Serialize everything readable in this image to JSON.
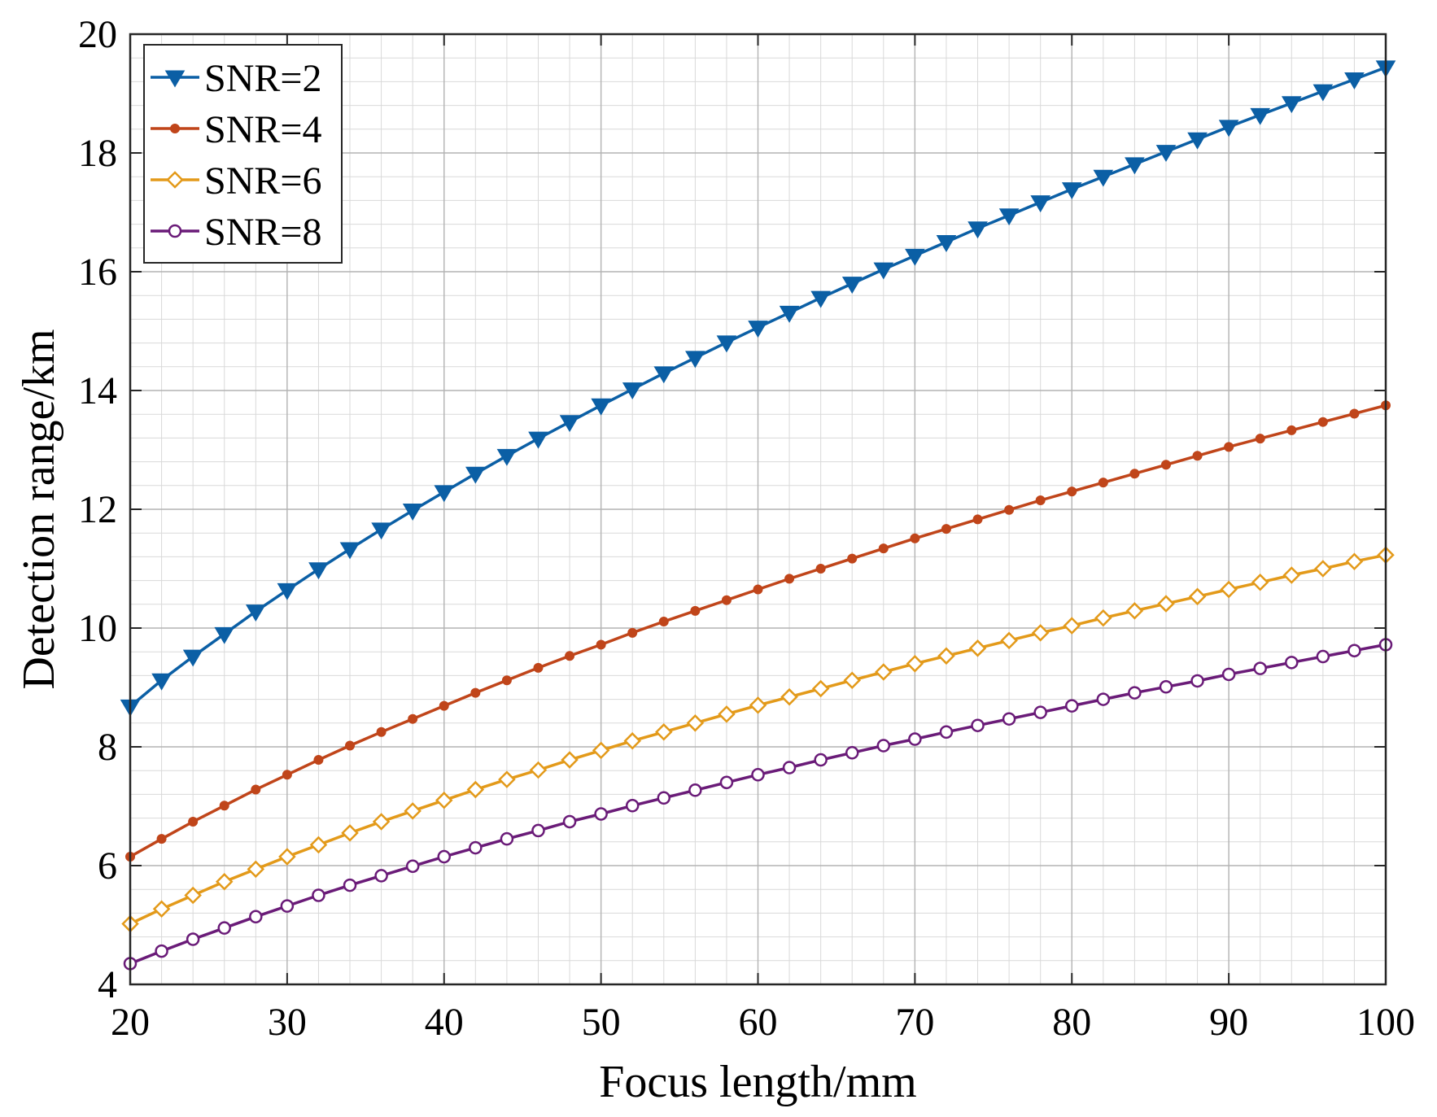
{
  "chart_data": {
    "type": "line",
    "title": "",
    "xlabel": "Focus length/mm",
    "ylabel": "Detection range/km",
    "xlim": [
      20,
      100
    ],
    "ylim": [
      4,
      20
    ],
    "xticks": [
      20,
      30,
      40,
      50,
      60,
      70,
      80,
      90,
      100
    ],
    "yticks": [
      4,
      6,
      8,
      10,
      12,
      14,
      16,
      18,
      20
    ],
    "grid": true,
    "minor_grid": true,
    "legend_position": "top-left",
    "x": [
      20,
      22,
      24,
      26,
      28,
      30,
      32,
      34,
      36,
      38,
      40,
      42,
      44,
      46,
      48,
      50,
      52,
      54,
      56,
      58,
      60,
      62,
      64,
      66,
      68,
      70,
      72,
      74,
      76,
      78,
      80,
      82,
      84,
      86,
      88,
      90,
      92,
      94,
      96,
      98,
      100
    ],
    "series": [
      {
        "name": "SNR=2",
        "color": "#0b5fa5",
        "marker": "triangle-down",
        "values": [
          8.68,
          9.12,
          9.52,
          9.9,
          10.28,
          10.64,
          10.99,
          11.33,
          11.66,
          11.98,
          12.29,
          12.6,
          12.9,
          13.19,
          13.47,
          13.75,
          14.02,
          14.29,
          14.55,
          14.81,
          15.06,
          15.31,
          15.56,
          15.8,
          16.04,
          16.27,
          16.5,
          16.73,
          16.95,
          17.17,
          17.39,
          17.6,
          17.81,
          18.02,
          18.23,
          18.44,
          18.64,
          18.84,
          19.04,
          19.24,
          19.44
        ]
      },
      {
        "name": "SNR=4",
        "color": "#c0451a",
        "marker": "dot",
        "values": [
          6.15,
          6.45,
          6.74,
          7.01,
          7.28,
          7.53,
          7.78,
          8.02,
          8.25,
          8.47,
          8.69,
          8.91,
          9.12,
          9.33,
          9.53,
          9.72,
          9.92,
          10.11,
          10.29,
          10.47,
          10.65,
          10.83,
          11.0,
          11.17,
          11.34,
          11.51,
          11.67,
          11.83,
          11.99,
          12.15,
          12.3,
          12.45,
          12.6,
          12.75,
          12.9,
          13.05,
          13.19,
          13.33,
          13.47,
          13.61,
          13.75
        ]
      },
      {
        "name": "SNR=6",
        "color": "#e39a1a",
        "marker": "diamond",
        "values": [
          5.02,
          5.27,
          5.5,
          5.73,
          5.94,
          6.15,
          6.35,
          6.55,
          6.74,
          6.92,
          7.1,
          7.28,
          7.45,
          7.61,
          7.78,
          7.94,
          8.1,
          8.25,
          8.4,
          8.55,
          8.7,
          8.84,
          8.98,
          9.12,
          9.26,
          9.4,
          9.53,
          9.66,
          9.79,
          9.92,
          10.04,
          10.17,
          10.29,
          10.41,
          10.53,
          10.65,
          10.77,
          10.89,
          11.0,
          11.12,
          11.23
        ]
      },
      {
        "name": "SNR=8",
        "color": "#6a1b78",
        "marker": "circle",
        "values": [
          4.35,
          4.56,
          4.76,
          4.95,
          5.14,
          5.32,
          5.5,
          5.67,
          5.83,
          5.99,
          6.15,
          6.3,
          6.45,
          6.59,
          6.74,
          6.87,
          7.01,
          7.14,
          7.27,
          7.4,
          7.53,
          7.65,
          7.78,
          7.9,
          8.02,
          8.13,
          8.25,
          8.36,
          8.47,
          8.58,
          8.69,
          8.8,
          8.91,
          9.01,
          9.11,
          9.22,
          9.32,
          9.42,
          9.52,
          9.62,
          9.72
        ]
      }
    ]
  }
}
